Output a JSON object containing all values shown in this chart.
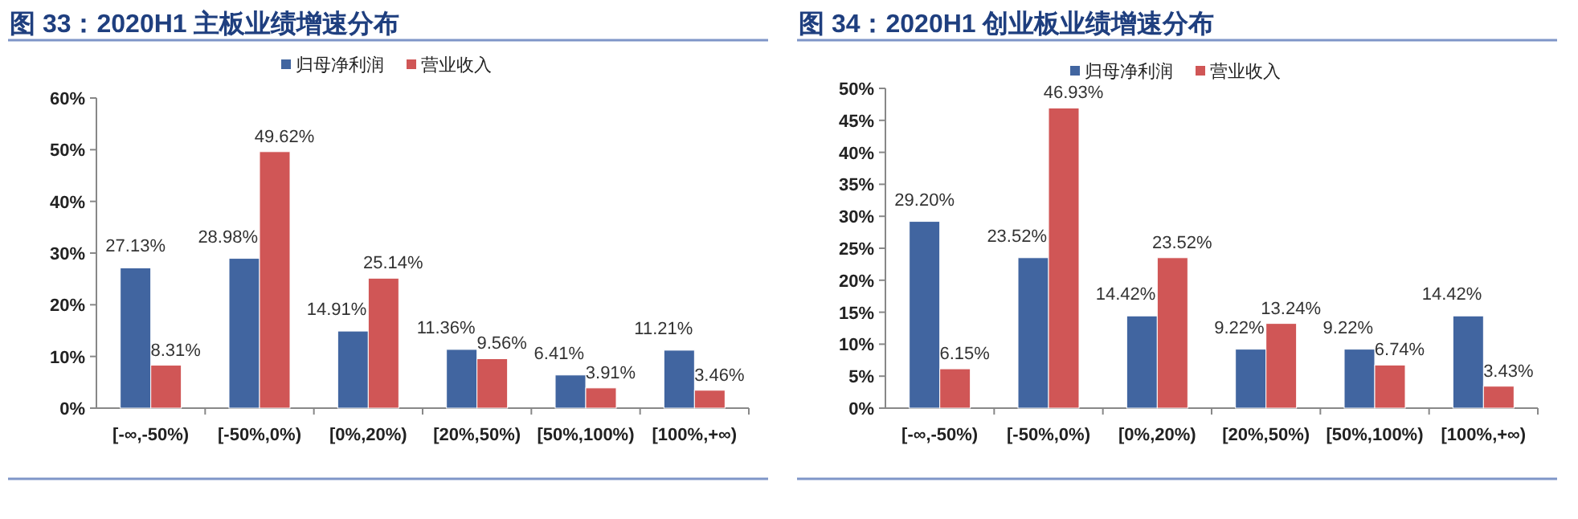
{
  "chart_data": [
    {
      "type": "bar",
      "title": "图 33：2020H1 主板业绩增速分布",
      "legend": "top",
      "grid": false,
      "categories": [
        "[-∞,-50%)",
        "[-50%,0%)",
        "[0%,20%)",
        "[20%,50%)",
        "[50%,100%)",
        "[100%,+∞)"
      ],
      "ylim": [
        0,
        60
      ],
      "yticks": [
        {
          "value": 0,
          "label": "0%"
        },
        {
          "value": 10,
          "label": "10%"
        },
        {
          "value": 20,
          "label": "20%"
        },
        {
          "value": 30,
          "label": "30%"
        },
        {
          "value": 40,
          "label": "40%"
        },
        {
          "value": 50,
          "label": "50%"
        },
        {
          "value": 60,
          "label": "60%"
        }
      ],
      "series": [
        {
          "name": "归母净利润",
          "color": "#4165a0",
          "values": [
            27.13,
            28.98,
            14.91,
            11.36,
            6.41,
            11.21
          ],
          "value_labels": [
            "27.13%",
            "28.98%",
            "14.91%",
            "11.36%",
            "6.41%",
            "11.21%"
          ]
        },
        {
          "name": "营业收入",
          "color": "#d05656",
          "values": [
            8.31,
            49.62,
            25.14,
            9.56,
            3.91,
            3.46
          ],
          "value_labels": [
            "8.31%",
            "49.62%",
            "25.14%",
            "9.56%",
            "3.91%",
            "3.46%"
          ]
        }
      ]
    },
    {
      "type": "bar",
      "title": "图 34：2020H1 创业板业绩增速分布",
      "legend": "top",
      "grid": false,
      "categories": [
        "[-∞,-50%)",
        "[-50%,0%)",
        "[0%,20%)",
        "[20%,50%)",
        "[50%,100%)",
        "[100%,+∞)"
      ],
      "ylim": [
        0,
        50
      ],
      "yticks": [
        {
          "value": 0,
          "label": "0%"
        },
        {
          "value": 5,
          "label": "5%"
        },
        {
          "value": 10,
          "label": "10%"
        },
        {
          "value": 15,
          "label": "15%"
        },
        {
          "value": 20,
          "label": "20%"
        },
        {
          "value": 25,
          "label": "25%"
        },
        {
          "value": 30,
          "label": "30%"
        },
        {
          "value": 35,
          "label": "35%"
        },
        {
          "value": 40,
          "label": "40%"
        },
        {
          "value": 45,
          "label": "45%"
        },
        {
          "value": 50,
          "label": "50%"
        }
      ],
      "series": [
        {
          "name": "归母净利润",
          "color": "#4165a0",
          "values": [
            29.2,
            23.52,
            14.42,
            9.22,
            9.22,
            14.42
          ],
          "value_labels": [
            "29.20%",
            "23.52%",
            "14.42%",
            "9.22%",
            "9.22%",
            "14.42%"
          ]
        },
        {
          "name": "营业收入",
          "color": "#d05656",
          "values": [
            6.15,
            46.93,
            23.52,
            13.24,
            6.74,
            3.43
          ],
          "value_labels": [
            "6.15%",
            "46.93%",
            "23.52%",
            "13.24%",
            "6.74%",
            "3.43%"
          ]
        }
      ]
    }
  ]
}
